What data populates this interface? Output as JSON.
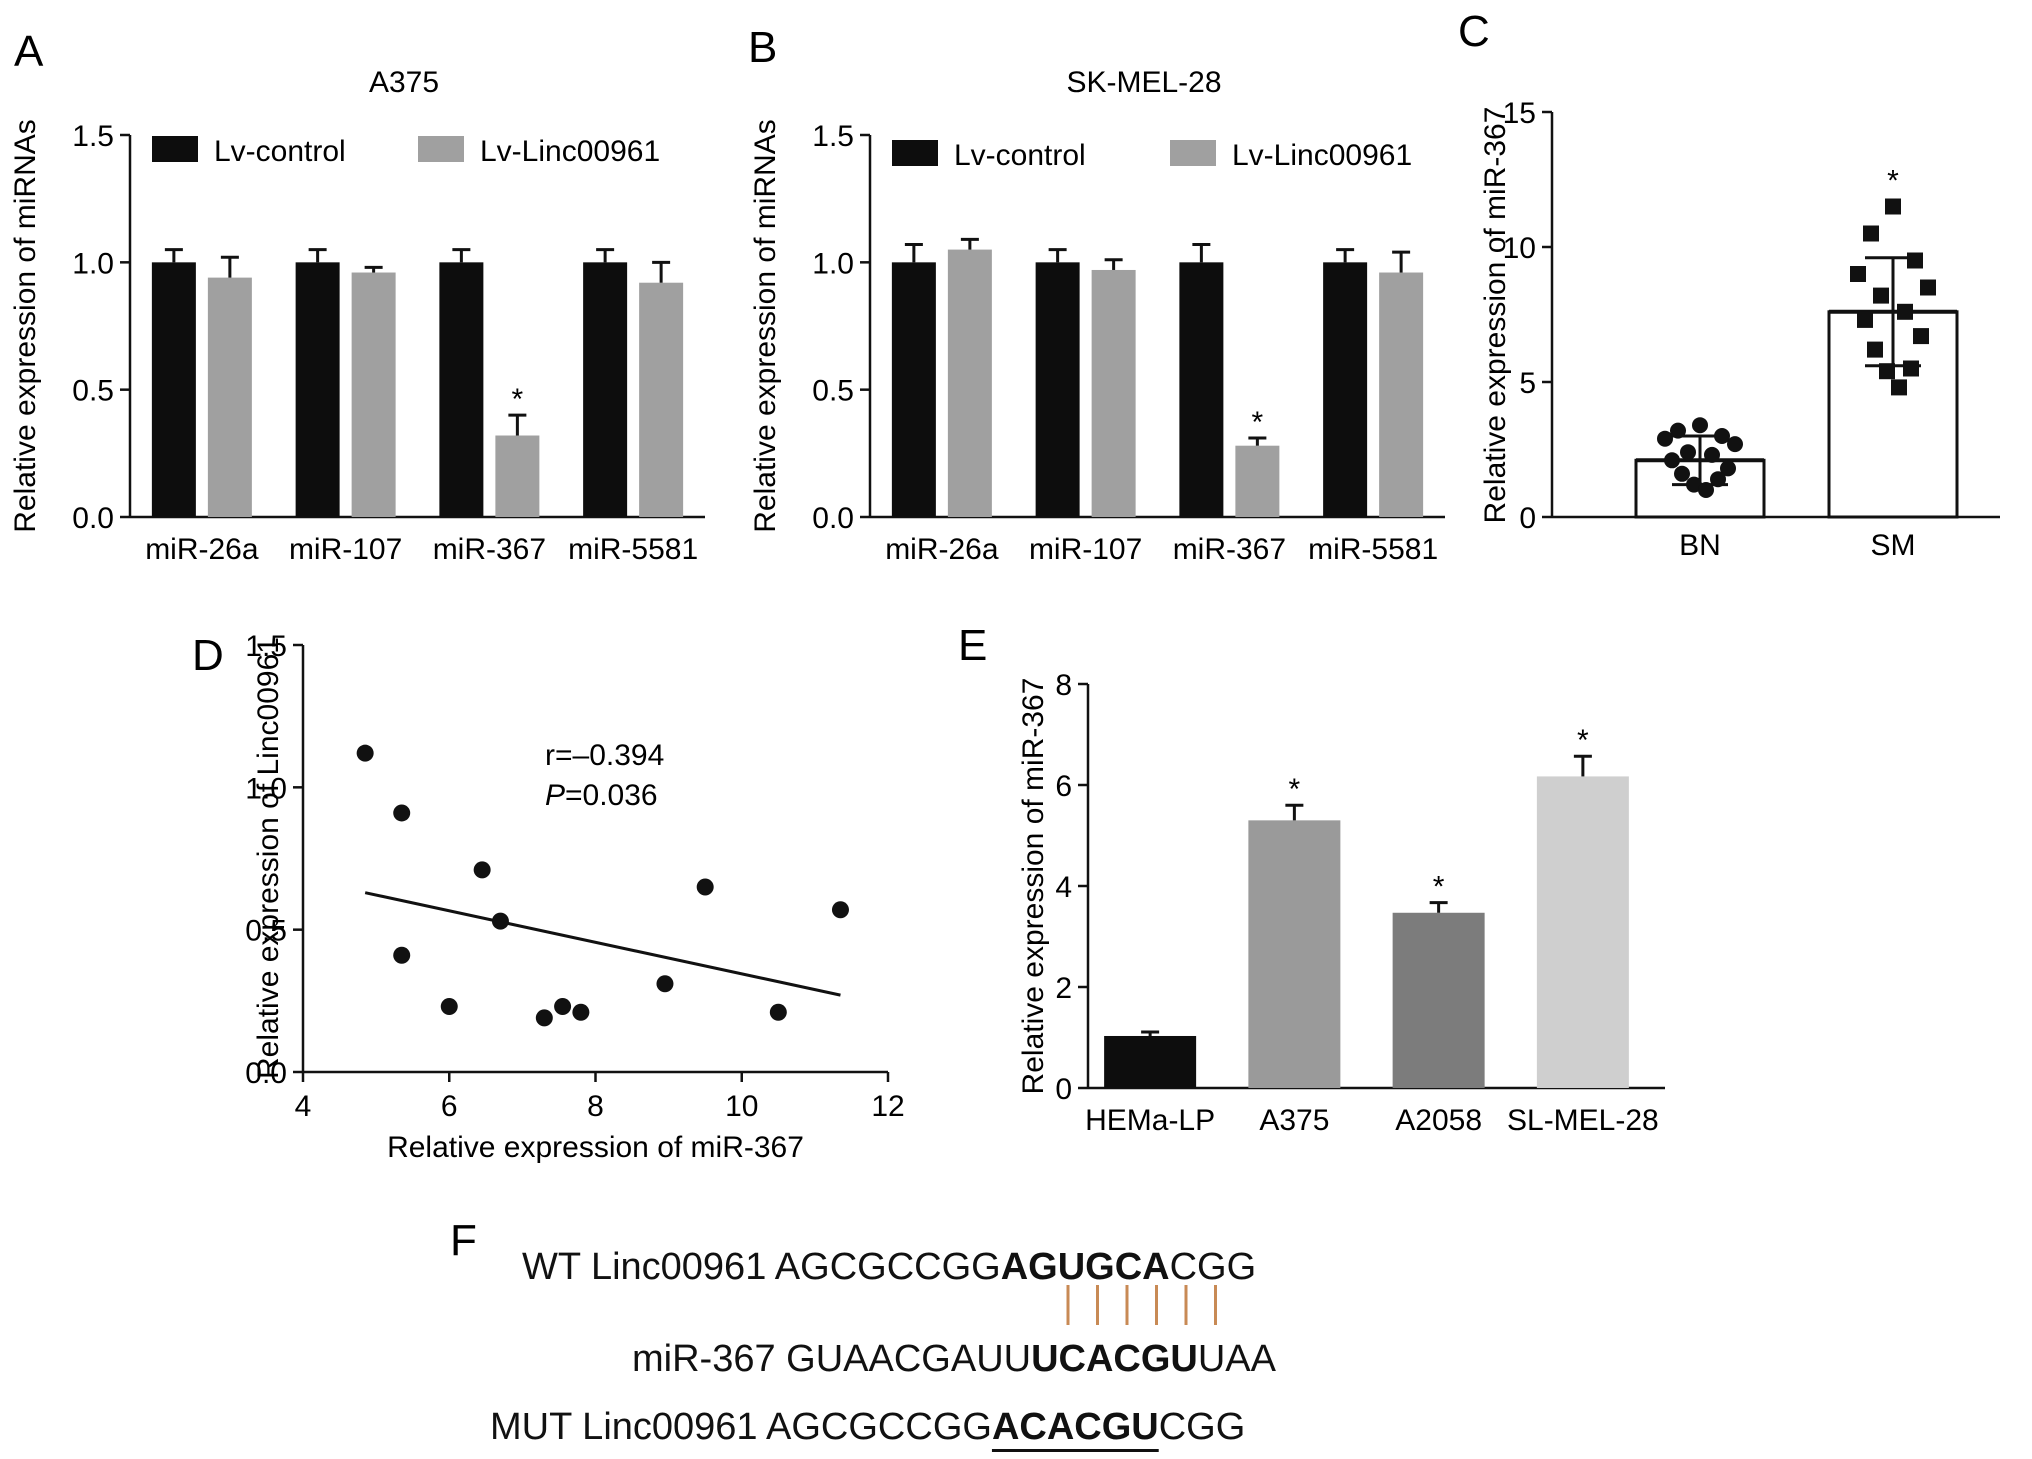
{
  "panel_letters": [
    "A",
    "B",
    "C",
    "D",
    "E",
    "F"
  ],
  "colors": {
    "black_bar": "#0d0d0d",
    "gray_bar": "#a0a0a0",
    "pair_line": "#c88a55",
    "hema": "#0d0d0d",
    "a375": "#9a9a9a",
    "a2058": "#7c7c7c",
    "slmel": "#cfcfcf"
  },
  "chart_data": [
    {
      "panel": "A",
      "type": "bar",
      "title": "A375",
      "ylabel": "Relative expression of miRNAs",
      "xlabel": "",
      "ylim": [
        0,
        1.5
      ],
      "yticks": [
        "0.0",
        "0.5",
        "1.0",
        "1.5"
      ],
      "yticks_values": [
        0,
        0.5,
        1.0,
        1.5
      ],
      "categories": [
        "miR-26a",
        "miR-107",
        "miR-367",
        "miR-5581"
      ],
      "legend_position": "top",
      "series": [
        {
          "name": "Lv-control",
          "values": [
            1.0,
            1.0,
            1.0,
            1.0
          ],
          "errors": [
            0.05,
            0.05,
            0.05,
            0.05
          ]
        },
        {
          "name": "Lv-Linc00961",
          "values": [
            0.94,
            0.96,
            0.32,
            0.92
          ],
          "errors": [
            0.08,
            0.02,
            0.08,
            0.08
          ]
        }
      ],
      "significance": [
        {
          "category": "miR-367",
          "series": 1,
          "label": "*"
        }
      ]
    },
    {
      "panel": "B",
      "type": "bar",
      "title": "SK-MEL-28",
      "ylabel": "Relative expression of miRNAs",
      "xlabel": "",
      "ylim": [
        0,
        1.5
      ],
      "yticks": [
        "0.0",
        "0.5",
        "1.0",
        "1.5"
      ],
      "yticks_values": [
        0,
        0.5,
        1.0,
        1.5
      ],
      "categories": [
        "miR-26a",
        "miR-107",
        "miR-367",
        "miR-5581"
      ],
      "legend_position": "top",
      "series": [
        {
          "name": "Lv-control",
          "values": [
            1.0,
            1.0,
            1.0,
            1.0
          ],
          "errors": [
            0.07,
            0.05,
            0.07,
            0.05
          ]
        },
        {
          "name": "Lv-Linc00961",
          "values": [
            1.05,
            0.97,
            0.28,
            0.96
          ],
          "errors": [
            0.04,
            0.04,
            0.03,
            0.08
          ]
        }
      ],
      "significance": [
        {
          "category": "miR-367",
          "series": 1,
          "label": "*"
        }
      ]
    },
    {
      "panel": "C",
      "type": "bar",
      "title": "",
      "ylabel": "Relative expression of miR-367",
      "xlabel": "",
      "ylim": [
        0,
        15
      ],
      "yticks": [
        "0",
        "5",
        "10",
        "15"
      ],
      "yticks_values": [
        0,
        5,
        10,
        15
      ],
      "categories": [
        "BN",
        "SM"
      ],
      "values": [
        2.1,
        7.6
      ],
      "errors": [
        0.9,
        2.0
      ],
      "points": [
        [
          3.4,
          3.2,
          3.0,
          2.9,
          2.7,
          2.4,
          2.3,
          2.1,
          1.8,
          1.6,
          1.4,
          1.2,
          1.0
        ],
        [
          11.5,
          10.5,
          9.5,
          9.0,
          8.5,
          8.2,
          7.6,
          7.3,
          6.7,
          6.2,
          5.5,
          5.4,
          4.8
        ]
      ],
      "significance": [
        {
          "category": "SM",
          "label": "*"
        }
      ]
    },
    {
      "panel": "D",
      "type": "scatter",
      "title": "",
      "xlabel": "Relative expression of miR-367",
      "ylabel": "Relative expression of Linc00961",
      "xlim": [
        4,
        12
      ],
      "ylim": [
        0,
        1.5
      ],
      "xticks": [
        "4",
        "6",
        "8",
        "10",
        "12"
      ],
      "xticks_values": [
        4,
        6,
        8,
        10,
        12
      ],
      "yticks": [
        "0.0",
        "0.5",
        "1.0",
        "1.5"
      ],
      "yticks_values": [
        0,
        0.5,
        1.0,
        1.5
      ],
      "x": [
        4.85,
        5.35,
        5.35,
        6.0,
        6.45,
        6.7,
        7.3,
        7.55,
        7.8,
        8.95,
        9.5,
        10.5,
        11.35
      ],
      "y": [
        1.12,
        0.91,
        0.41,
        0.23,
        0.71,
        0.53,
        0.19,
        0.23,
        0.21,
        0.31,
        0.65,
        0.21,
        0.57
      ],
      "fit": {
        "x": [
          4.85,
          11.35
        ],
        "y": [
          0.63,
          0.27
        ]
      },
      "annotation": {
        "r": "r=–0.394",
        "p_label": "P",
        "p_value": "=0.036"
      }
    },
    {
      "panel": "E",
      "type": "bar",
      "title": "",
      "ylabel": "Relative expression of miR-367",
      "xlabel": "",
      "ylim": [
        0,
        8
      ],
      "yticks": [
        "0",
        "2",
        "4",
        "6",
        "8"
      ],
      "yticks_values": [
        0,
        2,
        4,
        6,
        8
      ],
      "categories": [
        "HEMa-LP",
        "A375",
        "A2058",
        "SL-MEL-28"
      ],
      "values": [
        1.03,
        5.3,
        3.47,
        6.17
      ],
      "errors": [
        0.08,
        0.3,
        0.2,
        0.4
      ],
      "significance": [
        {
          "category": "A375",
          "label": "*"
        },
        {
          "category": "A2058",
          "label": "*"
        },
        {
          "category": "SL-MEL-28",
          "label": "*"
        }
      ]
    }
  ],
  "sequences": {
    "wt": {
      "label": "WT Linc00961 ",
      "pre": "AGCGCCGG",
      "bold": "AGUGCA",
      "post": "CGG"
    },
    "mir": {
      "label": "miR-367 ",
      "pre": "GUAACGAUU",
      "bold": "UCACGU",
      "post": "UAA"
    },
    "mut": {
      "label": "MUT Linc00961 ",
      "pre": "AGCGCCGG",
      "bold": "ACACGU",
      "post": "CGG"
    },
    "pair_count": 6
  }
}
